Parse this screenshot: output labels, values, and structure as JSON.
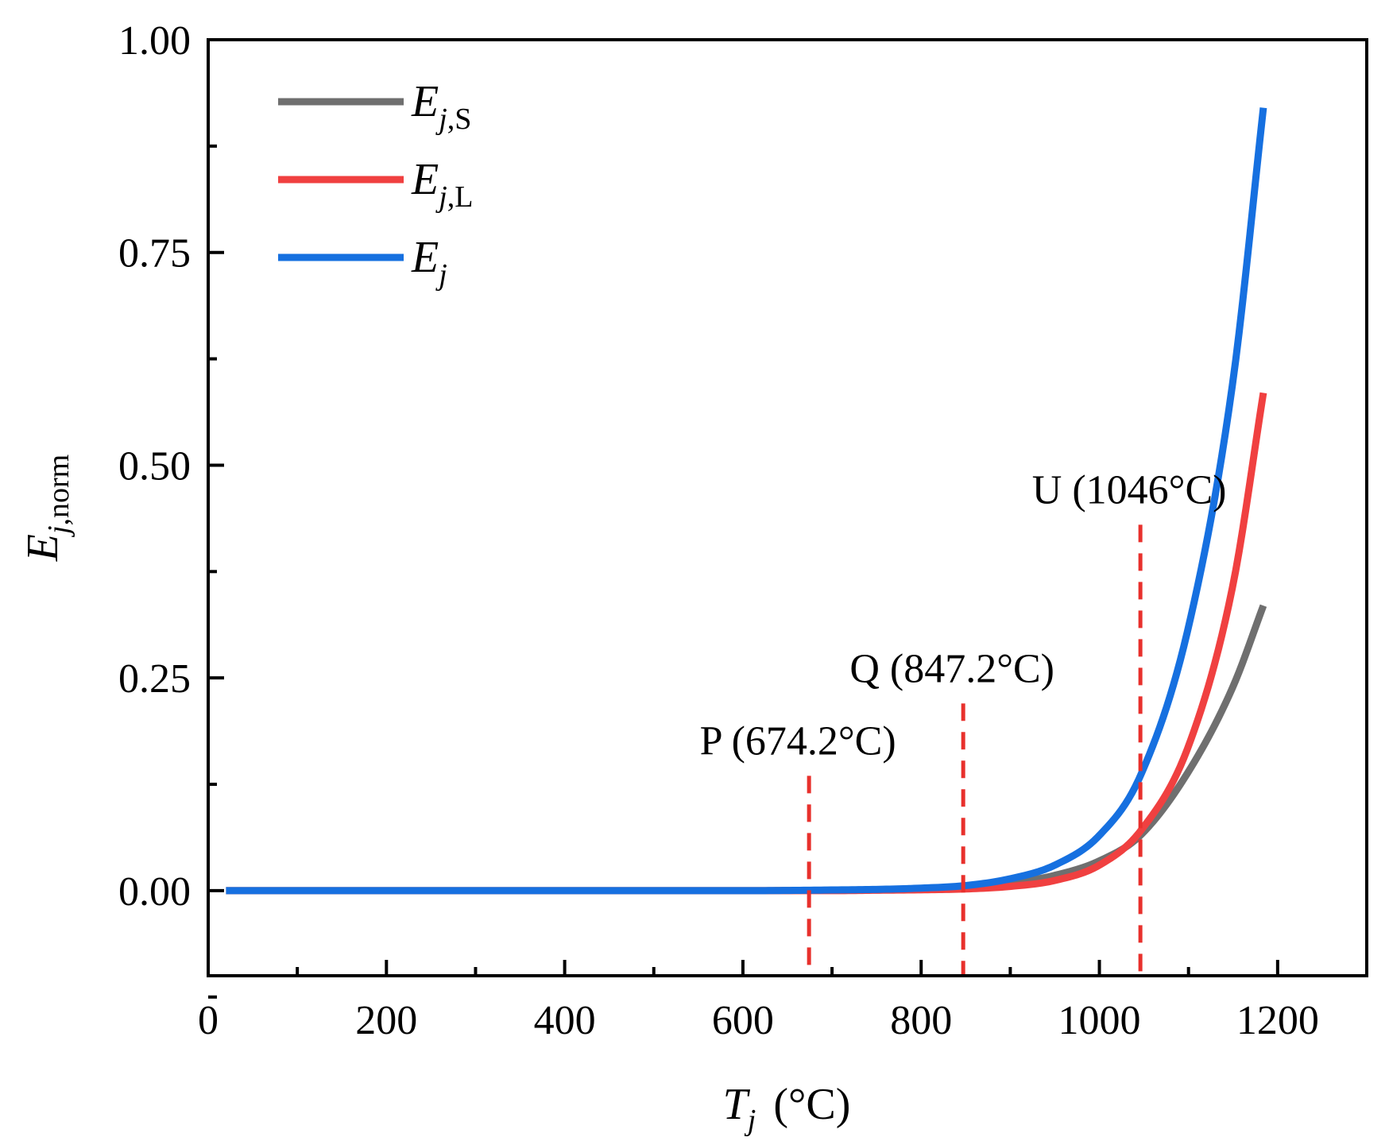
{
  "chart_data": {
    "type": "line",
    "x_title_main": "T",
    "x_title_sub": "j",
    "x_title_unit": "(°C)",
    "y_title_main": "E",
    "y_title_sub_italic": "j",
    "y_title_sub_rest": ",norm",
    "xlim": [
      0,
      1300
    ],
    "ylim": [
      -0.1,
      1.0
    ],
    "x_ticks": [
      0,
      200,
      400,
      600,
      800,
      1000,
      1200
    ],
    "x_tick_labels": [
      "0",
      "200",
      "400",
      "600",
      "800",
      "1000",
      "1200"
    ],
    "x_minor_ticks": [
      100,
      300,
      500,
      700,
      900,
      1100
    ],
    "y_ticks": [
      0.0,
      0.25,
      0.5,
      0.75,
      1.0
    ],
    "y_tick_labels": [
      "0.00",
      "0.25",
      "0.50",
      "0.75",
      "1.00"
    ],
    "y_minor_ticks": [
      -0.125,
      0.125,
      0.375,
      0.625,
      0.875
    ],
    "series": [
      {
        "name": "E_j,S",
        "legend_main": "E",
        "legend_sub_italic": "j",
        "legend_sub_rest": ",S",
        "color": "#6f6f6f",
        "x": [
          20,
          600,
          700,
          750,
          800,
          850,
          900,
          950,
          1000,
          1046,
          1100,
          1150,
          1184
        ],
        "y": [
          0,
          0,
          0.0005,
          0.001,
          0.002,
          0.004,
          0.009,
          0.018,
          0.035,
          0.065,
          0.14,
          0.24,
          0.335
        ]
      },
      {
        "name": "E_j,L",
        "legend_main": "E",
        "legend_sub_italic": "j",
        "legend_sub_rest": ",L",
        "color": "#f04040",
        "x": [
          20,
          600,
          700,
          750,
          800,
          850,
          900,
          950,
          1000,
          1046,
          1100,
          1150,
          1184
        ],
        "y": [
          0,
          0,
          0,
          0.0005,
          0.001,
          0.002,
          0.005,
          0.012,
          0.03,
          0.07,
          0.17,
          0.36,
          0.585
        ]
      },
      {
        "name": "E_j",
        "legend_main": "E",
        "legend_sub_italic": "j",
        "legend_sub_rest": "",
        "color": "#1670e0",
        "x": [
          20,
          600,
          700,
          750,
          800,
          850,
          900,
          950,
          1000,
          1046,
          1100,
          1150,
          1184
        ],
        "y": [
          0,
          0,
          0.0008,
          0.0015,
          0.003,
          0.006,
          0.014,
          0.03,
          0.065,
          0.135,
          0.31,
          0.6,
          0.92
        ]
      }
    ],
    "markers": [
      {
        "label": "P (674.2°C)",
        "x": 674.2,
        "y_top": 0.135,
        "label_y": 0.16,
        "color": "#e8302c"
      },
      {
        "label": "Q (847.2°C)",
        "x": 847.2,
        "y_top": 0.22,
        "label_y": 0.245,
        "color": "#e8302c"
      },
      {
        "label": "U (1046°C)",
        "x": 1046,
        "y_top": 0.43,
        "label_y": 0.455,
        "color": "#e8302c"
      }
    ]
  }
}
